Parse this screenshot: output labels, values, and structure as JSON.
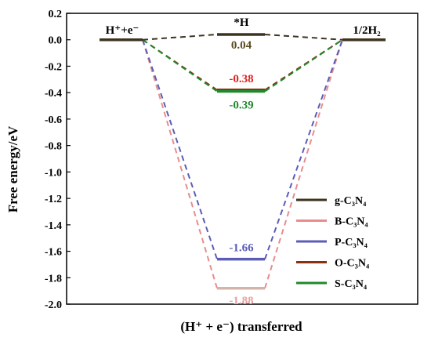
{
  "chart_data": {
    "type": "line",
    "ylabel": "Free energy/eV",
    "xlabel": "(H⁺ + e⁻) transferred",
    "ylim": [
      -2.0,
      0.2
    ],
    "yticks": [
      "0.2",
      "0.0",
      "-0.2",
      "-0.4",
      "-0.6",
      "-0.8",
      "-1.0",
      "-1.2",
      "-1.4",
      "-1.6",
      "-1.8",
      "-2.0"
    ],
    "states": [
      "H⁺+e⁻",
      "*H",
      "1/2H₂"
    ],
    "grid": false,
    "legend_position": "bottom-right",
    "series": [
      {
        "name": "g-C₃N₄",
        "color": "#3d3320",
        "values": [
          0.0,
          0.04,
          0.0
        ],
        "label": "0.04",
        "label_color": "#5a4a20"
      },
      {
        "name": "B-C₃N₄",
        "color": "#e88c8c",
        "values": [
          0.0,
          -1.88,
          0.0
        ],
        "label": "-1.88",
        "label_color": "#e8a0a0"
      },
      {
        "name": "P-C₃N₄",
        "color": "#5c5cb8",
        "values": [
          0.0,
          -1.66,
          0.0
        ],
        "label": "-1.66",
        "label_color": "#5c5cb8"
      },
      {
        "name": "O-C₃N₄",
        "color": "#8b2e12",
        "values": [
          0.0,
          -0.38,
          0.0
        ],
        "label": "-0.38",
        "label_color": "#e02020"
      },
      {
        "name": "S-C₃N₄",
        "color": "#1f8a2c",
        "values": [
          0.0,
          -0.39,
          0.0
        ],
        "label": "-0.39",
        "label_color": "#1f8a2c"
      }
    ]
  }
}
